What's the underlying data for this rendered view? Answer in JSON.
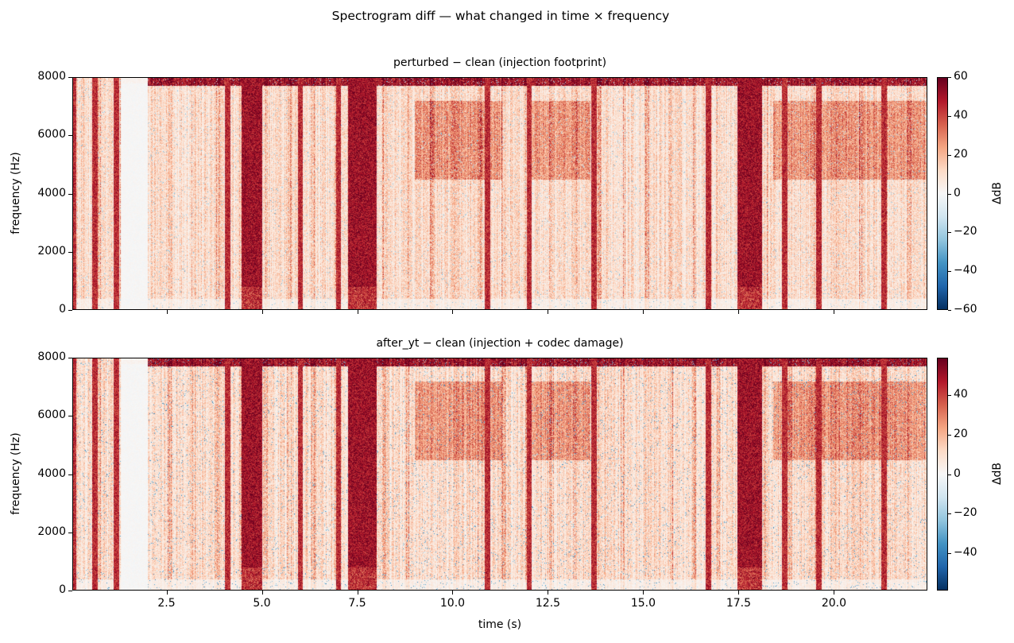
{
  "suptitle": "Spectrogram diff — what changed in time × frequency",
  "chart_data": [
    {
      "type": "heatmap",
      "title": "perturbed − clean  (injection footprint)",
      "xlabel": "",
      "ylabel": "frequency (Hz)",
      "xlim": [
        0.03,
        22.45
      ],
      "ylim": [
        0,
        8000
      ],
      "xticks": [
        "2.5",
        "5.0",
        "7.5",
        "10.0",
        "12.5",
        "15.0",
        "17.5",
        "20.0"
      ],
      "xtick_values": [
        2.5,
        5.0,
        7.5,
        10.0,
        12.5,
        15.0,
        17.5,
        20.0
      ],
      "xtick_labels_visible": false,
      "yticks": [
        "0",
        "2000",
        "4000",
        "6000",
        "8000"
      ],
      "ytick_values": [
        0,
        2000,
        4000,
        6000,
        8000
      ],
      "colormap": "RdBu_r",
      "colorbar": {
        "label": "ΔdB",
        "range": [
          -60,
          60
        ],
        "ticks": [
          "60",
          "40",
          "20",
          "0",
          "−20",
          "−40",
          "−60"
        ],
        "tick_values": [
          60,
          40,
          20,
          0,
          -20,
          -40,
          -60
        ]
      },
      "strong_segments_s": [
        [
          4.45,
          5.0
        ],
        [
          7.25,
          8.0
        ],
        [
          17.45,
          18.1
        ]
      ],
      "near_zero_segments_s": [
        [
          1.3,
          2.0
        ]
      ],
      "thin_lines_s": [
        0.06,
        0.62,
        1.18,
        4.1,
        6.0,
        7.0,
        10.9,
        12.0,
        13.7,
        16.7,
        18.7,
        19.6,
        21.3
      ],
      "typical_delta_db": 20,
      "peak_delta_db": 60
    },
    {
      "type": "heatmap",
      "title": "after_yt − clean  (injection + codec damage)",
      "xlabel": "time (s)",
      "ylabel": "frequency (Hz)",
      "xlim": [
        0.03,
        22.45
      ],
      "ylim": [
        0,
        8000
      ],
      "xticks": [
        "2.5",
        "5.0",
        "7.5",
        "10.0",
        "12.5",
        "15.0",
        "17.5",
        "20.0"
      ],
      "xtick_values": [
        2.5,
        5.0,
        7.5,
        10.0,
        12.5,
        15.0,
        17.5,
        20.0
      ],
      "xtick_labels_visible": true,
      "yticks": [
        "0",
        "2000",
        "4000",
        "6000",
        "8000"
      ],
      "ytick_values": [
        0,
        2000,
        4000,
        6000,
        8000
      ],
      "colormap": "RdBu_r",
      "colorbar": {
        "label": "ΔdB",
        "range": [
          -59,
          59
        ],
        "ticks": [
          "40",
          "20",
          "0",
          "−20",
          "−40"
        ],
        "tick_values": [
          40,
          20,
          0,
          -20,
          -40
        ]
      },
      "strong_segments_s": [
        [
          4.45,
          5.0
        ],
        [
          7.25,
          8.0
        ],
        [
          17.45,
          18.1
        ]
      ],
      "near_zero_segments_s": [
        [
          1.3,
          2.0
        ]
      ],
      "thin_lines_s": [
        0.06,
        0.62,
        1.18,
        4.1,
        6.0,
        7.0,
        10.9,
        12.0,
        13.7,
        16.7,
        18.7,
        19.6,
        21.3
      ],
      "typical_delta_db": 20,
      "peak_delta_db": 59
    }
  ]
}
